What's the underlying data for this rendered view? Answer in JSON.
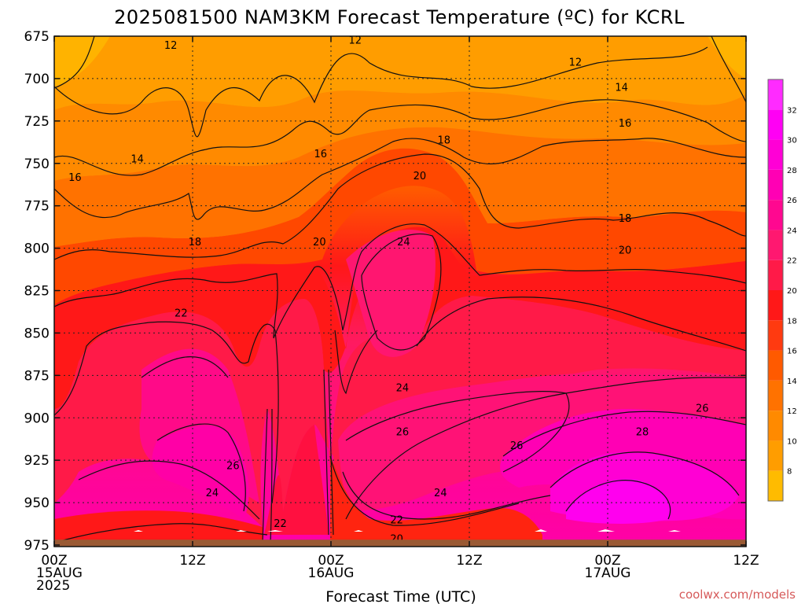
{
  "chart_data": {
    "type": "heatmap",
    "title": "2025081500 NAM3KM Forecast Temperature (ºC) for KCRL",
    "xlabel": "Forecast Time (UTC)",
    "ylabel": "",
    "x_ticks": [
      {
        "hour": 0,
        "labels": [
          "00Z",
          "15AUG",
          "2025"
        ]
      },
      {
        "hour": 12,
        "labels": [
          "12Z"
        ]
      },
      {
        "hour": 24,
        "labels": [
          "00Z",
          "16AUG"
        ]
      },
      {
        "hour": 36,
        "labels": [
          "12Z"
        ]
      },
      {
        "hour": 48,
        "labels": [
          "00Z",
          "17AUG"
        ]
      },
      {
        "hour": 60,
        "labels": [
          "12Z"
        ]
      }
    ],
    "xlim": [
      0,
      60
    ],
    "y_ticks": [
      675,
      700,
      725,
      750,
      775,
      800,
      825,
      850,
      875,
      900,
      925,
      950,
      975
    ],
    "ylim": [
      675,
      975
    ],
    "y_inverted": true,
    "grid": "dotted",
    "colorbar": {
      "ticks": [
        8,
        10,
        12,
        14,
        16,
        18,
        20,
        22,
        24,
        26,
        28,
        30,
        32
      ],
      "range": [
        6,
        34
      ],
      "colors": [
        "#ffbb00",
        "#ff9d00",
        "#ff8a00",
        "#ff7200",
        "#ff5a00",
        "#ff3a10",
        "#ff1818",
        "#ff1a48",
        "#ff1870",
        "#ff0890",
        "#ff00b4",
        "#ff00d6",
        "#ff00f4",
        "#ff2bff"
      ]
    },
    "contour_levels": [
      12,
      14,
      16,
      18,
      20,
      22,
      24,
      26,
      28
    ],
    "contour_labels": [
      {
        "text": "12",
        "hour": 10.1,
        "p": 680
      },
      {
        "text": "12",
        "hour": 26.1,
        "p": 677
      },
      {
        "text": "12",
        "hour": 45.2,
        "p": 690
      },
      {
        "text": "14",
        "hour": 7.2,
        "p": 747
      },
      {
        "text": "14",
        "hour": 49.2,
        "p": 705
      },
      {
        "text": "16",
        "hour": 1.8,
        "p": 758
      },
      {
        "text": "16",
        "hour": 23.1,
        "p": 744
      },
      {
        "text": "16",
        "hour": 49.5,
        "p": 726
      },
      {
        "text": "18",
        "hour": 12.2,
        "p": 796
      },
      {
        "text": "18",
        "hour": 33.8,
        "p": 736
      },
      {
        "text": "18",
        "hour": 49.5,
        "p": 782
      },
      {
        "text": "20",
        "hour": 23.0,
        "p": 796
      },
      {
        "text": "20",
        "hour": 31.7,
        "p": 757
      },
      {
        "text": "20",
        "hour": 49.5,
        "p": 801
      },
      {
        "text": "20",
        "hour": 29.7,
        "p": 971
      },
      {
        "text": "22",
        "hour": 11.0,
        "p": 838
      },
      {
        "text": "22",
        "hour": 19.6,
        "p": 962
      },
      {
        "text": "22",
        "hour": 29.7,
        "p": 960
      },
      {
        "text": "24",
        "hour": 30.3,
        "p": 796
      },
      {
        "text": "24",
        "hour": 30.2,
        "p": 882
      },
      {
        "text": "24",
        "hour": 13.7,
        "p": 944
      },
      {
        "text": "24",
        "hour": 33.5,
        "p": 944
      },
      {
        "text": "26",
        "hour": 30.2,
        "p": 908
      },
      {
        "text": "26",
        "hour": 15.5,
        "p": 928
      },
      {
        "text": "26",
        "hour": 40.1,
        "p": 916
      },
      {
        "text": "26",
        "hour": 56.2,
        "p": 894
      },
      {
        "text": "28",
        "hour": 51.0,
        "p": 908
      }
    ],
    "surface_pressure_p": 970,
    "surface_color": "#9a5a34",
    "annotations": [
      "coolwx.com/models"
    ]
  }
}
